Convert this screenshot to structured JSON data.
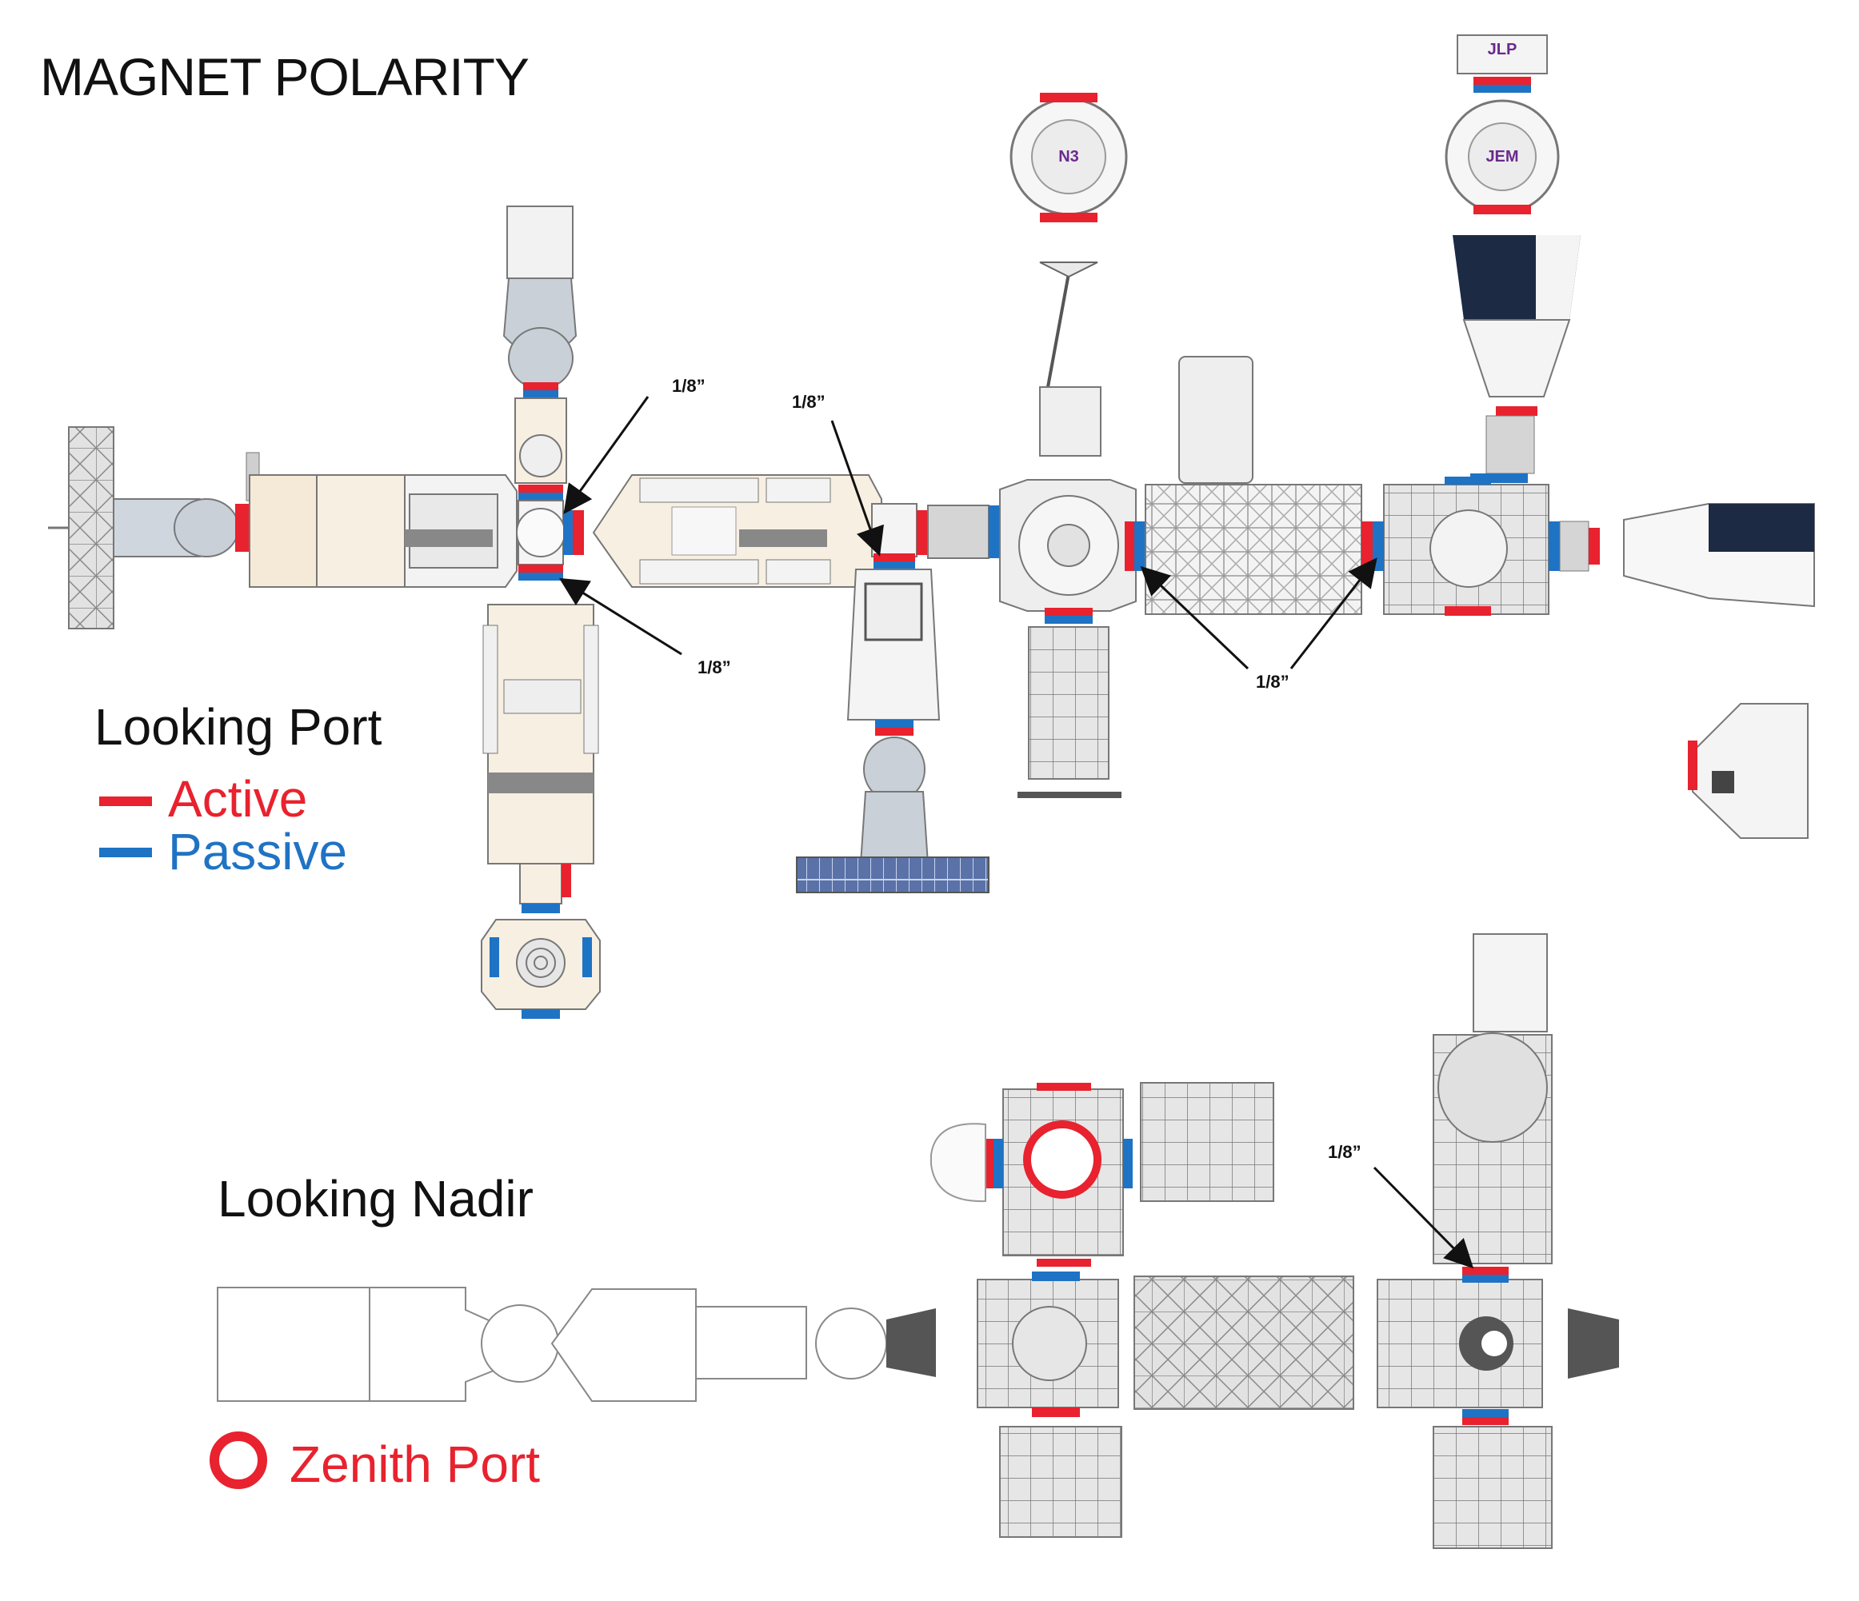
{
  "title": "MAGNET POLARITY",
  "port_view": {
    "heading": "Looking Port",
    "legend": [
      {
        "label": "Active",
        "color": "#e8222e"
      },
      {
        "label": "Passive",
        "color": "#1f73c4"
      }
    ],
    "module_labels": {
      "node3": "N3",
      "jem": "JEM",
      "jlp": "JLP"
    },
    "dimension_labels": [
      "1/8”",
      "1/8”",
      "1/8”",
      "1/8”"
    ]
  },
  "nadir_view": {
    "heading": "Looking Nadir",
    "legend": {
      "label": "Zenith Port",
      "color": "#e8222e"
    },
    "dimension_labels": [
      "1/8”"
    ]
  },
  "colors": {
    "active": "#e8222e",
    "passive": "#1f73c4",
    "module_fill": "#e9e9e9",
    "module_stroke": "#555555",
    "navy": "#1c2a44"
  }
}
